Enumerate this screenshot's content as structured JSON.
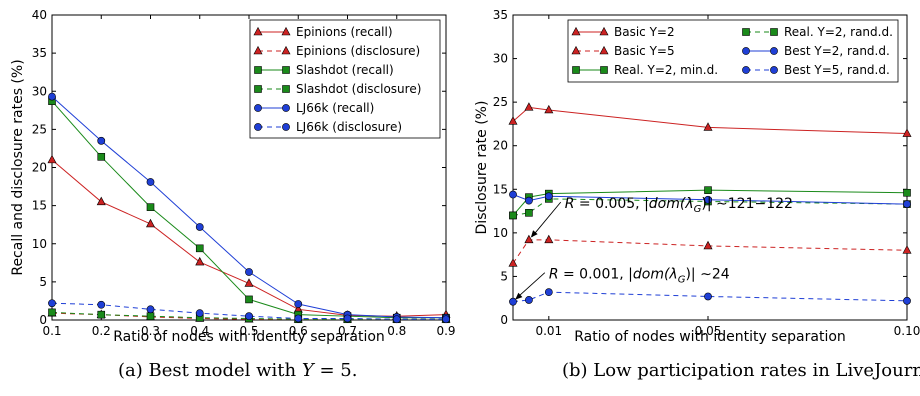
{
  "captions": [
    {
      "prefix": "(a) Best model with ",
      "var": "Y",
      "suffix": " = 5."
    },
    {
      "prefix": "(b) Low participation rates in LiveJournal.",
      "var": "",
      "suffix": ""
    }
  ],
  "chart_data": [
    {
      "type": "line",
      "title": "",
      "xlabel": "Ratio of nodes with identity separation",
      "ylabel": "Recall and disclosure rates (%)",
      "xlim": [
        0.1,
        0.9
      ],
      "ylim": [
        0,
        40
      ],
      "xticks": [
        0.1,
        0.2,
        0.3,
        0.4,
        0.5,
        0.6,
        0.7,
        0.8,
        0.9
      ],
      "xtick_labels": [
        "0.1",
        "0.2",
        "0.3",
        "0.4",
        "0.5",
        "0.6",
        "0.7",
        "0.8",
        "0.9"
      ],
      "yticks": [
        0,
        5,
        10,
        15,
        20,
        25,
        30,
        35,
        40
      ],
      "ytick_labels": [
        "0",
        "5",
        "10",
        "15",
        "20",
        "25",
        "30",
        "35",
        "40"
      ],
      "grid": false,
      "legend": {
        "position": "top-right",
        "columns": 1
      },
      "x": [
        0.1,
        0.2,
        0.3,
        0.4,
        0.5,
        0.6,
        0.7,
        0.8,
        0.9
      ],
      "series": [
        {
          "name": "Epinions (recall)",
          "color": "#cc2222",
          "marker": "triangle",
          "dash": false,
          "values": [
            21.0,
            15.5,
            12.6,
            7.6,
            4.8,
            1.4,
            0.6,
            0.5,
            0.7
          ]
        },
        {
          "name": "Epinions (disclosure)",
          "color": "#cc2222",
          "marker": "triangle",
          "dash": true,
          "values": [
            0.9,
            0.7,
            0.4,
            0.2,
            0.1,
            0.1,
            0.1,
            0.1,
            0.1
          ]
        },
        {
          "name": "Slashdot (recall)",
          "color": "#1a8a1a",
          "marker": "square",
          "dash": false,
          "values": [
            28.7,
            21.4,
            14.8,
            9.4,
            2.7,
            0.7,
            0.5,
            0.3,
            0.3
          ]
        },
        {
          "name": "Slashdot (disclosure)",
          "color": "#1a8a1a",
          "marker": "square",
          "dash": true,
          "values": [
            1.0,
            0.7,
            0.5,
            0.3,
            0.2,
            0.1,
            0.1,
            0.1,
            0.1
          ]
        },
        {
          "name": "LJ66k (recall)",
          "color": "#1f3fd6",
          "marker": "circle",
          "dash": false,
          "values": [
            29.3,
            23.5,
            18.1,
            12.2,
            6.3,
            2.1,
            0.7,
            0.4,
            0.3
          ]
        },
        {
          "name": "LJ66k (disclosure)",
          "color": "#1f3fd6",
          "marker": "circle",
          "dash": true,
          "values": [
            2.2,
            2.0,
            1.4,
            0.9,
            0.5,
            0.2,
            0.2,
            0.1,
            0.1
          ]
        }
      ]
    },
    {
      "type": "line",
      "title": "",
      "xlabel": "Ratio of nodes with identity separation",
      "ylabel": "Disclosure rate (%)",
      "xlim": [
        0.001,
        0.1
      ],
      "ylim": [
        0,
        35
      ],
      "xticks": [
        0.01,
        0.05,
        0.1
      ],
      "xtick_labels": [
        "0.01",
        "0.05",
        "0.10"
      ],
      "yticks": [
        0,
        5,
        10,
        15,
        20,
        25,
        30,
        35
      ],
      "ytick_labels": [
        "0",
        "5",
        "10",
        "15",
        "20",
        "25",
        "30",
        "35"
      ],
      "grid": false,
      "legend": {
        "position": "top",
        "columns": 2
      },
      "x": [
        0.001,
        0.005,
        0.01,
        0.05,
        0.1
      ],
      "series": [
        {
          "name": "Basic Y=2",
          "color": "#cc2222",
          "marker": "triangle",
          "dash": false,
          "values": [
            22.8,
            24.4,
            24.1,
            22.1,
            21.4
          ]
        },
        {
          "name": "Basic Y=5",
          "color": "#cc2222",
          "marker": "triangle",
          "dash": true,
          "values": [
            6.5,
            9.2,
            9.2,
            8.5,
            8.0
          ]
        },
        {
          "name": "Real. Y=2, min.d.",
          "color": "#1a8a1a",
          "marker": "square",
          "dash": false,
          "values": [
            12.0,
            14.1,
            14.5,
            14.9,
            14.6
          ]
        },
        {
          "name": "Real. Y=2, rand.d.",
          "color": "#1a8a1a",
          "marker": "square",
          "dash": true,
          "values": [
            12.0,
            12.3,
            13.9,
            13.6,
            13.3
          ]
        },
        {
          "name": "Best Y=2, rand.d.",
          "color": "#1f3fd6",
          "marker": "circle",
          "dash": false,
          "values": [
            14.4,
            13.7,
            14.2,
            13.8,
            13.3
          ]
        },
        {
          "name": "Best Y=5, rand.d.",
          "color": "#1f3fd6",
          "marker": "circle",
          "dash": true,
          "values": [
            2.1,
            2.3,
            3.2,
            2.7,
            2.2
          ]
        }
      ],
      "annotations": [
        {
          "prefix": "R",
          "eq": " = 0.005, |",
          "dom": "dom",
          "lambda": "(λ",
          "sub": "G",
          "tail": ")| ∼121−122",
          "point": [
            0.005,
            9.2
          ],
          "text_at": [
            0.014,
            13.3
          ]
        },
        {
          "prefix": "R",
          "eq": " = 0.001, |",
          "dom": "dom",
          "lambda": "(λ",
          "sub": "G",
          "tail": ")| ∼24",
          "point": [
            0.001,
            2.1
          ],
          "text_at": [
            0.01,
            5.2
          ]
        }
      ]
    }
  ]
}
